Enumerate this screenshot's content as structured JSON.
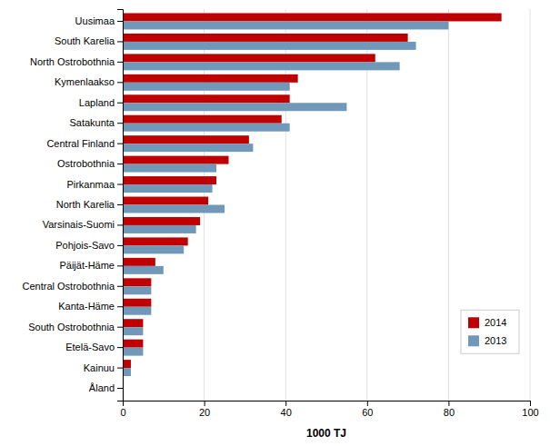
{
  "chart_data": {
    "type": "bar",
    "orientation": "horizontal",
    "categories": [
      "Uusimaa",
      "South Karelia",
      "North Ostrobothnia",
      "Kymenlaakso",
      "Lapland",
      "Satakunta",
      "Central Finland",
      "Ostrobothnia",
      "Pirkanmaa",
      "North Karelia",
      "Varsinais-Suomi",
      "Pohjois-Savo",
      "Päijät-Häme",
      "Central Ostrobothnia",
      "Kanta-Häme",
      "South Ostrobothnia",
      "Etelä-Savo",
      "Kainuu",
      "Åland"
    ],
    "series": [
      {
        "name": "2014",
        "color": "#c00000",
        "values": [
          93,
          70,
          62,
          43,
          41,
          39,
          31,
          26,
          23,
          21,
          19,
          16,
          8,
          7,
          7,
          5,
          5,
          2,
          0
        ]
      },
      {
        "name": "2013",
        "color": "#7098b8",
        "values": [
          80,
          72,
          68,
          41,
          55,
          41,
          32,
          23,
          22,
          25,
          18,
          15,
          10,
          7,
          7,
          5,
          5,
          2,
          0
        ]
      }
    ],
    "xlabel": "1000 TJ",
    "xlim": [
      0,
      100
    ],
    "xticks": [
      0,
      20,
      40,
      60,
      80,
      100
    ],
    "grid": true,
    "legend": "lower right"
  }
}
